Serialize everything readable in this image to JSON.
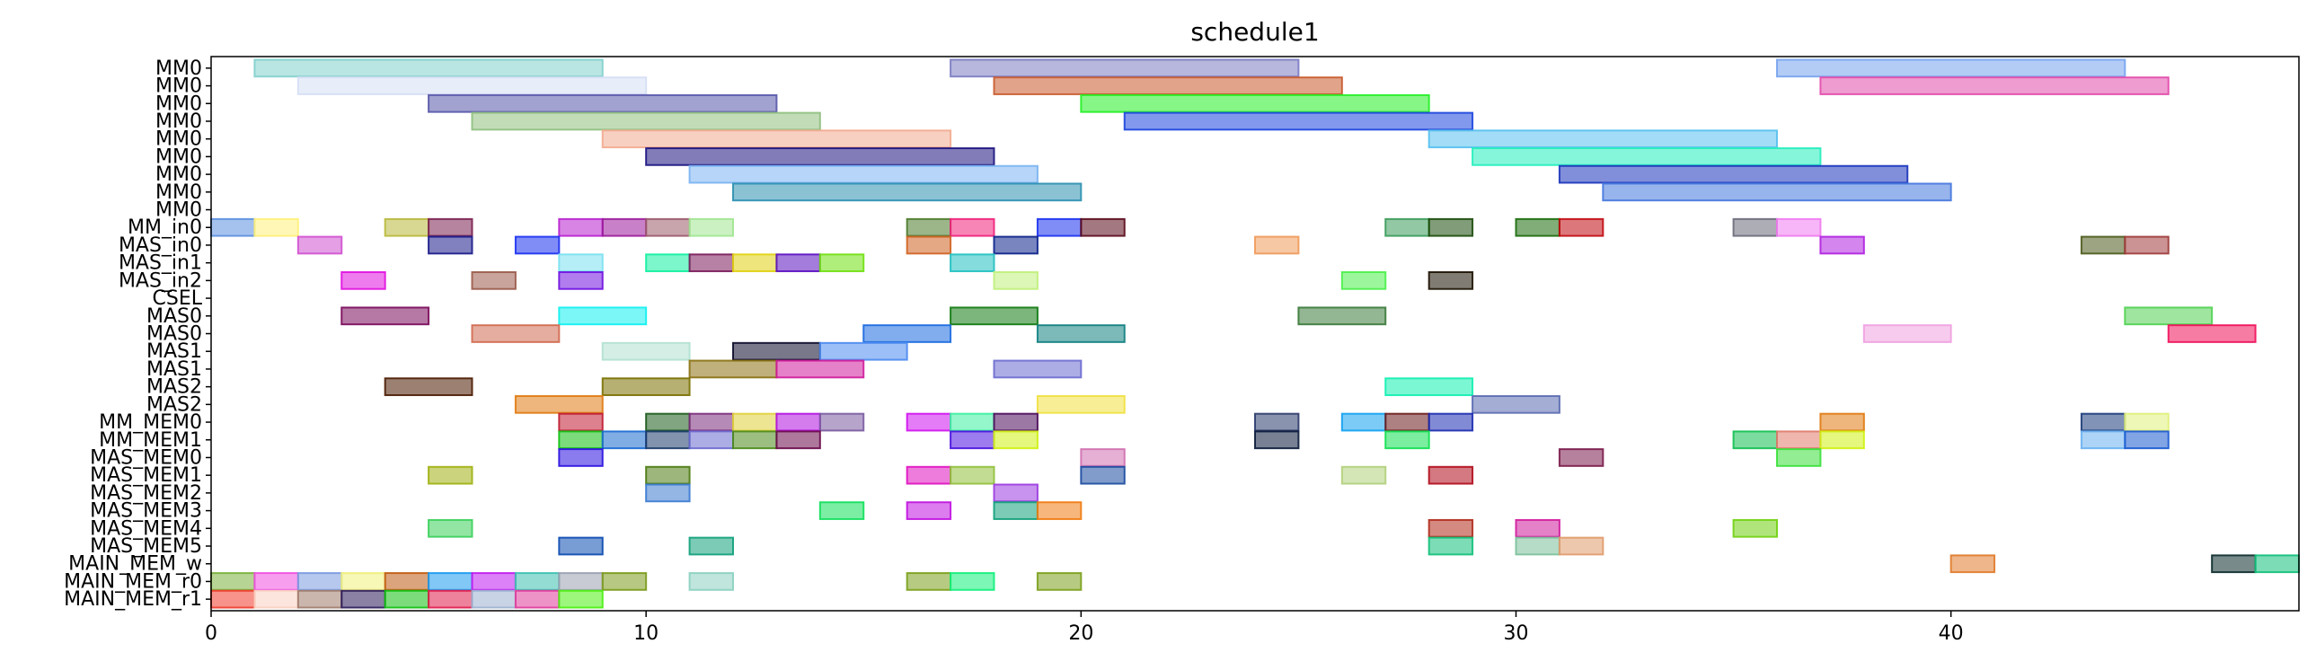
{
  "chart_data": {
    "type": "gantt",
    "title": "schedule1",
    "xlim": [
      0,
      48
    ],
    "xticks": [
      0,
      10,
      20,
      30,
      40
    ],
    "grid": false,
    "rows": [
      "MM0",
      "MM0",
      "MM0",
      "MM0",
      "MM0",
      "MM0",
      "MM0",
      "MM0",
      "MM0",
      "MM_in0",
      "MAS_in0",
      "MAS_in1",
      "MAS_in2",
      "CSEL",
      "MAS0",
      "MAS0",
      "MAS1",
      "MAS1",
      "MAS2",
      "MAS2",
      "MM_MEM0",
      "MM_MEM1",
      "MAS_MEM0",
      "MAS_MEM1",
      "MAS_MEM2",
      "MAS_MEM3",
      "MAS_MEM4",
      "MAS_MEM5",
      "MAIN_MEM_w",
      "MAIN_MEM_r0",
      "MAIN_MEM_r1"
    ],
    "tasks": [
      {
        "row": 0,
        "start": 1,
        "end": 9,
        "color": "#7fcfcc"
      },
      {
        "row": 0,
        "start": 17,
        "end": 25,
        "color": "#7b7bc2"
      },
      {
        "row": 0,
        "start": 36,
        "end": 44,
        "color": "#75a3ee"
      },
      {
        "row": 1,
        "start": 2,
        "end": 10,
        "color": "#d6def5"
      },
      {
        "row": 1,
        "start": 18,
        "end": 26,
        "color": "#c95a2c"
      },
      {
        "row": 1,
        "start": 37,
        "end": 45,
        "color": "#e24aab"
      },
      {
        "row": 2,
        "start": 5,
        "end": 13,
        "color": "#5656aa"
      },
      {
        "row": 2,
        "start": 20,
        "end": 28,
        "color": "#22f022"
      },
      {
        "row": 3,
        "start": 6,
        "end": 14,
        "color": "#8fbf7e"
      },
      {
        "row": 3,
        "start": 21,
        "end": 29,
        "color": "#1a44dd"
      },
      {
        "row": 4,
        "start": 9,
        "end": 17,
        "color": "#f2aa8f"
      },
      {
        "row": 4,
        "start": 28,
        "end": 36,
        "color": "#55c0ee"
      },
      {
        "row": 5,
        "start": 10,
        "end": 18,
        "color": "#1b137f"
      },
      {
        "row": 5,
        "start": 29,
        "end": 37,
        "color": "#22eebb"
      },
      {
        "row": 6,
        "start": 11,
        "end": 19,
        "color": "#7ab2f2"
      },
      {
        "row": 6,
        "start": 31,
        "end": 39,
        "color": "#1a33bb"
      },
      {
        "row": 7,
        "start": 12,
        "end": 20,
        "color": "#2a8fb0"
      },
      {
        "row": 7,
        "start": 32,
        "end": 40,
        "color": "#4477dd"
      },
      {
        "row": 9,
        "start": 0,
        "end": 1,
        "color": "#5b8fe0"
      },
      {
        "row": 9,
        "start": 1,
        "end": 2,
        "color": "#fff07a"
      },
      {
        "row": 9,
        "start": 4,
        "end": 5,
        "color": "#b8b83a"
      },
      {
        "row": 9,
        "start": 5,
        "end": 6,
        "color": "#7a1f50"
      },
      {
        "row": 9,
        "start": 8,
        "end": 9,
        "color": "#b81fcf"
      },
      {
        "row": 9,
        "start": 9,
        "end": 10,
        "color": "#9a1a9a"
      },
      {
        "row": 9,
        "start": 10,
        "end": 11,
        "color": "#9a5a6a"
      },
      {
        "row": 9,
        "start": 11,
        "end": 12,
        "color": "#a0e590"
      },
      {
        "row": 9,
        "start": 16,
        "end": 17,
        "color": "#4a7a2a"
      },
      {
        "row": 9,
        "start": 17,
        "end": 18,
        "color": "#f0207a"
      },
      {
        "row": 9,
        "start": 19,
        "end": 20,
        "color": "#1a30f0"
      },
      {
        "row": 9,
        "start": 20,
        "end": 21,
        "color": "#5a0a1a"
      },
      {
        "row": 9,
        "start": 27,
        "end": 28,
        "color": "#3a9a5a"
      },
      {
        "row": 9,
        "start": 28,
        "end": 29,
        "color": "#1a4a0a"
      },
      {
        "row": 9,
        "start": 30,
        "end": 31,
        "color": "#1a6a0a"
      },
      {
        "row": 9,
        "start": 31,
        "end": 32,
        "color": "#c00a10"
      },
      {
        "row": 9,
        "start": 35,
        "end": 36,
        "color": "#6a6a7a"
      },
      {
        "row": 9,
        "start": 36,
        "end": 37,
        "color": "#f07af0"
      },
      {
        "row": 10,
        "start": 2,
        "end": 3,
        "color": "#d050d0"
      },
      {
        "row": 10,
        "start": 5,
        "end": 6,
        "color": "#1a1a8a"
      },
      {
        "row": 10,
        "start": 7,
        "end": 8,
        "color": "#1a30f0"
      },
      {
        "row": 10,
        "start": 16,
        "end": 17,
        "color": "#d06020"
      },
      {
        "row": 10,
        "start": 18,
        "end": 19,
        "color": "#0a208a"
      },
      {
        "row": 10,
        "start": 24,
        "end": 25,
        "color": "#f09a5a"
      },
      {
        "row": 10,
        "start": 37,
        "end": 38,
        "color": "#b020e0"
      },
      {
        "row": 10,
        "start": 43,
        "end": 44,
        "color": "#4a5a1a"
      },
      {
        "row": 10,
        "start": 44,
        "end": 45,
        "color": "#a03a3a"
      },
      {
        "row": 11,
        "start": 8,
        "end": 9,
        "color": "#7ae0f0"
      },
      {
        "row": 11,
        "start": 10,
        "end": 11,
        "color": "#10f0a0"
      },
      {
        "row": 11,
        "start": 11,
        "end": 12,
        "color": "#7a1a5a"
      },
      {
        "row": 11,
        "start": 12,
        "end": 13,
        "color": "#e0d010"
      },
      {
        "row": 11,
        "start": 13,
        "end": 14,
        "color": "#5a10c0"
      },
      {
        "row": 11,
        "start": 14,
        "end": 15,
        "color": "#70e010"
      },
      {
        "row": 11,
        "start": 17,
        "end": 18,
        "color": "#20c0c0"
      },
      {
        "row": 12,
        "start": 3,
        "end": 4,
        "color": "#e010e0"
      },
      {
        "row": 12,
        "start": 6,
        "end": 7,
        "color": "#9a5a4a"
      },
      {
        "row": 12,
        "start": 8,
        "end": 9,
        "color": "#7010e0"
      },
      {
        "row": 12,
        "start": 18,
        "end": 19,
        "color": "#c0f07a"
      },
      {
        "row": 12,
        "start": 26,
        "end": 27,
        "color": "#4af04a"
      },
      {
        "row": 12,
        "start": 28,
        "end": 29,
        "color": "#1a1000"
      },
      {
        "row": 14,
        "start": 3,
        "end": 5,
        "color": "#7a0a5a"
      },
      {
        "row": 14,
        "start": 8,
        "end": 10,
        "color": "#10f0f0"
      },
      {
        "row": 14,
        "start": 17,
        "end": 19,
        "color": "#107a10"
      },
      {
        "row": 14,
        "start": 25,
        "end": 27,
        "color": "#3a7a3a"
      },
      {
        "row": 14,
        "start": 44,
        "end": 46,
        "color": "#50d050"
      },
      {
        "row": 15,
        "start": 6,
        "end": 8,
        "color": "#d06a50"
      },
      {
        "row": 15,
        "start": 15,
        "end": 17,
        "color": "#1a6ae0"
      },
      {
        "row": 15,
        "start": 19,
        "end": 21,
        "color": "#108080"
      },
      {
        "row": 15,
        "start": 38,
        "end": 40,
        "color": "#f0a0e0"
      },
      {
        "row": 15,
        "start": 45,
        "end": 47,
        "color": "#f0105a"
      },
      {
        "row": 16,
        "start": 9,
        "end": 11,
        "color": "#b0e0d0"
      },
      {
        "row": 16,
        "start": 12,
        "end": 14,
        "color": "#0a0a2a"
      },
      {
        "row": 16,
        "start": 14,
        "end": 16,
        "color": "#4a8af0"
      },
      {
        "row": 17,
        "start": 11,
        "end": 13,
        "color": "#8a7010"
      },
      {
        "row": 17,
        "start": 13,
        "end": 15,
        "color": "#d01a9a"
      },
      {
        "row": 17,
        "start": 18,
        "end": 20,
        "color": "#6a6ad0"
      },
      {
        "row": 18,
        "start": 4,
        "end": 6,
        "color": "#4a1a00"
      },
      {
        "row": 18,
        "start": 9,
        "end": 11,
        "color": "#7a7000"
      },
      {
        "row": 18,
        "start": 27,
        "end": 29,
        "color": "#10f0b0"
      },
      {
        "row": 19,
        "start": 7,
        "end": 9,
        "color": "#e07a10"
      },
      {
        "row": 19,
        "start": 19,
        "end": 21,
        "color": "#f0e040"
      },
      {
        "row": 19,
        "start": 29,
        "end": 31,
        "color": "#5a6ab0"
      },
      {
        "row": 20,
        "start": 8,
        "end": 9,
        "color": "#c01a30"
      },
      {
        "row": 20,
        "start": 10,
        "end": 11,
        "color": "#1a5a1a"
      },
      {
        "row": 20,
        "start": 11,
        "end": 12,
        "color": "#7a2a7a"
      },
      {
        "row": 20,
        "start": 12,
        "end": 13,
        "color": "#e0d03a"
      },
      {
        "row": 20,
        "start": 13,
        "end": 14,
        "color": "#b010e0"
      },
      {
        "row": 20,
        "start": 14,
        "end": 15,
        "color": "#7a5aa0"
      },
      {
        "row": 20,
        "start": 16,
        "end": 17,
        "color": "#d010f0"
      },
      {
        "row": 20,
        "start": 17,
        "end": 18,
        "color": "#3af0a0"
      },
      {
        "row": 20,
        "start": 18,
        "end": 19,
        "color": "#4a0a5a"
      },
      {
        "row": 20,
        "start": 24,
        "end": 25,
        "color": "#2a3a6a"
      },
      {
        "row": 20,
        "start": 26,
        "end": 27,
        "color": "#10a0f0"
      },
      {
        "row": 20,
        "start": 27,
        "end": 28,
        "color": "#6a1a1a"
      },
      {
        "row": 20,
        "start": 28,
        "end": 29,
        "color": "#1a2ab0"
      },
      {
        "row": 20,
        "start": 37,
        "end": 38,
        "color": "#e07a10"
      },
      {
        "row": 20,
        "start": 43,
        "end": 44,
        "color": "#1a3a7a"
      },
      {
        "row": 20,
        "start": 44,
        "end": 45,
        "color": "#e0f07a"
      },
      {
        "row": 21,
        "start": 8,
        "end": 9,
        "color": "#10c010"
      },
      {
        "row": 21,
        "start": 9,
        "end": 10,
        "color": "#1a6ad0"
      },
      {
        "row": 21,
        "start": 10,
        "end": 11,
        "color": "#1a3a6a"
      },
      {
        "row": 21,
        "start": 11,
        "end": 12,
        "color": "#6a6ad0"
      },
      {
        "row": 21,
        "start": 12,
        "end": 13,
        "color": "#4a8a1a"
      },
      {
        "row": 21,
        "start": 13,
        "end": 14,
        "color": "#6a0a4a"
      },
      {
        "row": 21,
        "start": 17,
        "end": 18,
        "color": "#4a10e0"
      },
      {
        "row": 21,
        "start": 18,
        "end": 19,
        "color": "#d0f010"
      },
      {
        "row": 21,
        "start": 24,
        "end": 25,
        "color": "#0a1a3a"
      },
      {
        "row": 21,
        "start": 27,
        "end": 28,
        "color": "#10e050"
      },
      {
        "row": 21,
        "start": 35,
        "end": 36,
        "color": "#10c050"
      },
      {
        "row": 21,
        "start": 36,
        "end": 37,
        "color": "#e07a6a"
      },
      {
        "row": 21,
        "start": 37,
        "end": 38,
        "color": "#d0f010"
      },
      {
        "row": 21,
        "start": 43,
        "end": 44,
        "color": "#6ab0f0"
      },
      {
        "row": 21,
        "start": 44,
        "end": 45,
        "color": "#1a5ad0"
      },
      {
        "row": 22,
        "start": 8,
        "end": 9,
        "color": "#2a10e0"
      },
      {
        "row": 22,
        "start": 20,
        "end": 21,
        "color": "#d070b0"
      },
      {
        "row": 22,
        "start": 31,
        "end": 32,
        "color": "#7a1a4a"
      },
      {
        "row": 22,
        "start": 36,
        "end": 37,
        "color": "#3ae03a"
      },
      {
        "row": 23,
        "start": 5,
        "end": 6,
        "color": "#a0b010"
      },
      {
        "row": 23,
        "start": 10,
        "end": 11,
        "color": "#4a7a10"
      },
      {
        "row": 23,
        "start": 16,
        "end": 17,
        "color": "#e010c0"
      },
      {
        "row": 23,
        "start": 17,
        "end": 18,
        "color": "#90c03a"
      },
      {
        "row": 23,
        "start": 20,
        "end": 21,
        "color": "#1a4aa0"
      },
      {
        "row": 23,
        "start": 26,
        "end": 27,
        "color": "#b0d07a"
      },
      {
        "row": 23,
        "start": 28,
        "end": 29,
        "color": "#b00a1a"
      },
      {
        "row": 24,
        "start": 10,
        "end": 11,
        "color": "#3a7ad0"
      },
      {
        "row": 24,
        "start": 18,
        "end": 19,
        "color": "#9a3ae0"
      },
      {
        "row": 25,
        "start": 14,
        "end": 15,
        "color": "#10e05a"
      },
      {
        "row": 25,
        "start": 16,
        "end": 17,
        "color": "#c010e0"
      },
      {
        "row": 25,
        "start": 18,
        "end": 19,
        "color": "#10a07a"
      },
      {
        "row": 25,
        "start": 19,
        "end": 20,
        "color": "#f07a10"
      },
      {
        "row": 26,
        "start": 5,
        "end": 6,
        "color": "#3ad05a"
      },
      {
        "row": 26,
        "start": 28,
        "end": 29,
        "color": "#b02a1a"
      },
      {
        "row": 26,
        "start": 30,
        "end": 31,
        "color": "#d01a9a"
      },
      {
        "row": 26,
        "start": 35,
        "end": 36,
        "color": "#70d010"
      },
      {
        "row": 27,
        "start": 8,
        "end": 9,
        "color": "#0a4ab0"
      },
      {
        "row": 27,
        "start": 11,
        "end": 12,
        "color": "#10a07a"
      },
      {
        "row": 27,
        "start": 28,
        "end": 29,
        "color": "#10c07a"
      },
      {
        "row": 27,
        "start": 30,
        "end": 31,
        "color": "#7ac09a"
      },
      {
        "row": 27,
        "start": 31,
        "end": 32,
        "color": "#e09a6a"
      },
      {
        "row": 28,
        "start": 40,
        "end": 41,
        "color": "#e07a2a"
      },
      {
        "row": 28,
        "start": 46,
        "end": 47,
        "color": "#0a2a2a"
      },
      {
        "row": 28,
        "start": 47,
        "end": 48,
        "color": "#10c07a"
      },
      {
        "row": 29,
        "start": 0,
        "end": 1,
        "color": "#7ab03a"
      },
      {
        "row": 29,
        "start": 1,
        "end": 2,
        "color": "#f050e0"
      },
      {
        "row": 29,
        "start": 2,
        "end": 3,
        "color": "#7a9ae0"
      },
      {
        "row": 29,
        "start": 3,
        "end": 4,
        "color": "#f0f07a"
      },
      {
        "row": 29,
        "start": 4,
        "end": 5,
        "color": "#c05a10"
      },
      {
        "row": 29,
        "start": 5,
        "end": 6,
        "color": "#1a9af0"
      },
      {
        "row": 29,
        "start": 6,
        "end": 7,
        "color": "#c01af0"
      },
      {
        "row": 29,
        "start": 7,
        "end": 8,
        "color": "#3ac0b0"
      },
      {
        "row": 29,
        "start": 8,
        "end": 9,
        "color": "#9aa0b0"
      },
      {
        "row": 29,
        "start": 9,
        "end": 10,
        "color": "#7a9a1a"
      },
      {
        "row": 29,
        "start": 11,
        "end": 12,
        "color": "#8ad0c0"
      },
      {
        "row": 29,
        "start": 16,
        "end": 17,
        "color": "#7aa01a"
      },
      {
        "row": 29,
        "start": 17,
        "end": 18,
        "color": "#10f07a"
      },
      {
        "row": 29,
        "start": 19,
        "end": 20,
        "color": "#7aa01a"
      },
      {
        "row": 30,
        "start": 0,
        "end": 1,
        "color": "#f03a2a"
      },
      {
        "row": 30,
        "start": 1,
        "end": 2,
        "color": "#fad0c0"
      },
      {
        "row": 30,
        "start": 2,
        "end": 3,
        "color": "#a07a6a"
      },
      {
        "row": 30,
        "start": 3,
        "end": 4,
        "color": "#2a1a5a"
      },
      {
        "row": 30,
        "start": 4,
        "end": 5,
        "color": "#10c010"
      },
      {
        "row": 30,
        "start": 5,
        "end": 6,
        "color": "#e01a4a"
      },
      {
        "row": 30,
        "start": 6,
        "end": 7,
        "color": "#9ab0d0"
      },
      {
        "row": 30,
        "start": 7,
        "end": 8,
        "color": "#e03a9a"
      },
      {
        "row": 30,
        "start": 8,
        "end": 9,
        "color": "#4af010"
      }
    ]
  }
}
